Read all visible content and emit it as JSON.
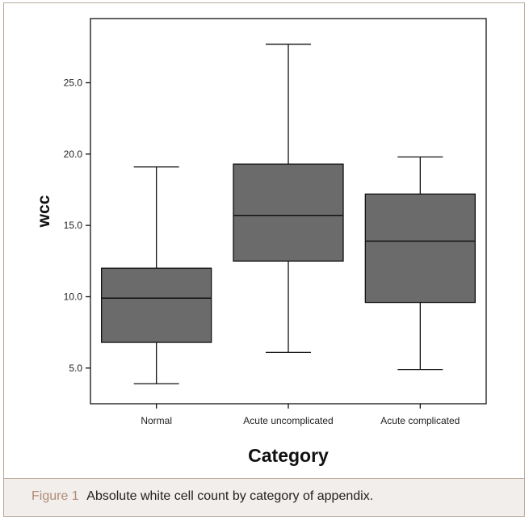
{
  "figure": {
    "caption_label": "Figure 1",
    "caption_text": "Absolute white cell count by category of appendix."
  },
  "colors": {
    "box_fill": "#6b6b6b",
    "stroke": "#111111",
    "frame_border": "#b9a99a",
    "caption_bg": "#f1eeeb",
    "caption_label": "#b08c78"
  },
  "chart_data": {
    "type": "boxplot",
    "title": "",
    "xlabel": "Category",
    "ylabel": "wcc",
    "ylim": [
      2.5,
      29.5
    ],
    "y_ticks": [
      5.0,
      10.0,
      15.0,
      20.0,
      25.0
    ],
    "y_tick_labels": [
      "5.0",
      "10.0",
      "15.0",
      "20.0",
      "25.0"
    ],
    "categories": [
      "Normal",
      "Acute uncomplicated",
      "Acute complicated"
    ],
    "boxes": [
      {
        "category": "Normal",
        "min": 3.9,
        "q1": 6.8,
        "median": 9.9,
        "q3": 12.0,
        "max": 19.1
      },
      {
        "category": "Acute uncomplicated",
        "min": 6.1,
        "q1": 12.5,
        "median": 15.7,
        "q3": 19.3,
        "max": 27.7
      },
      {
        "category": "Acute complicated",
        "min": 4.9,
        "q1": 9.6,
        "median": 13.9,
        "q3": 17.2,
        "max": 19.8
      }
    ],
    "grid": false,
    "legend": "none"
  }
}
